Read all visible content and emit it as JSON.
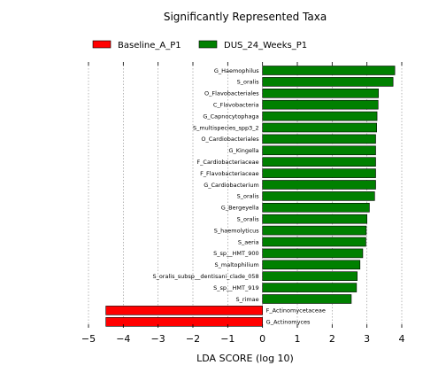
{
  "chart_data": {
    "type": "bar",
    "orientation": "horizontal",
    "title": "Significantly Represented Taxa",
    "xlabel": "LDA SCORE (log 10)",
    "xlim": [
      -5,
      4
    ],
    "xticks": [
      "−5",
      "−4",
      "−3",
      "−2",
      "−1",
      "0",
      "1",
      "2",
      "3",
      "4"
    ],
    "grid": "vertical dotted",
    "legend_position": "top",
    "legend": [
      {
        "name": "Baseline_A_P1",
        "color": "#ff0000"
      },
      {
        "name": "DUS_24_Weeks_P1",
        "color": "#008000"
      }
    ],
    "bars": [
      {
        "label": "G_Haemophilus",
        "value": 3.8,
        "group": 1
      },
      {
        "label": "S_oralis",
        "value": 3.75,
        "group": 1
      },
      {
        "label": "O_Flavobacteriales",
        "value": 3.33,
        "group": 1
      },
      {
        "label": "C_Flavobacteria",
        "value": 3.32,
        "group": 1
      },
      {
        "label": "G_Capnocytophaga",
        "value": 3.29,
        "group": 1
      },
      {
        "label": "S_multispecies_spp3_2",
        "value": 3.28,
        "group": 1
      },
      {
        "label": "O_Cardiobacteriales",
        "value": 3.25,
        "group": 1
      },
      {
        "label": "G_Kingella",
        "value": 3.25,
        "group": 1
      },
      {
        "label": "F_Cardiobacteriaceae",
        "value": 3.25,
        "group": 1
      },
      {
        "label": "F_Flavobacteriaceae",
        "value": 3.25,
        "group": 1
      },
      {
        "label": "G_Cardiobacterium",
        "value": 3.25,
        "group": 1
      },
      {
        "label": "S_oralis",
        "value": 3.22,
        "group": 1
      },
      {
        "label": "G_Bergeyella",
        "value": 3.07,
        "group": 1
      },
      {
        "label": "S_oralis",
        "value": 3.0,
        "group": 1
      },
      {
        "label": "S_haemolyticus",
        "value": 2.98,
        "group": 1
      },
      {
        "label": "S_aeria",
        "value": 2.97,
        "group": 1
      },
      {
        "label": "S_sp__HMT_900",
        "value": 2.88,
        "group": 1
      },
      {
        "label": "S_maltophilium",
        "value": 2.8,
        "group": 1
      },
      {
        "label": "S_oralis_subsp__dentisani_clade_058",
        "value": 2.72,
        "group": 1
      },
      {
        "label": "S_sp__HMT_919",
        "value": 2.7,
        "group": 1
      },
      {
        "label": "S_rimae",
        "value": 2.55,
        "group": 1
      },
      {
        "label": "F_Actinomycetaceae",
        "value": -4.5,
        "group": 0
      },
      {
        "label": "G_Actinomyces",
        "value": -4.5,
        "group": 0
      }
    ]
  }
}
